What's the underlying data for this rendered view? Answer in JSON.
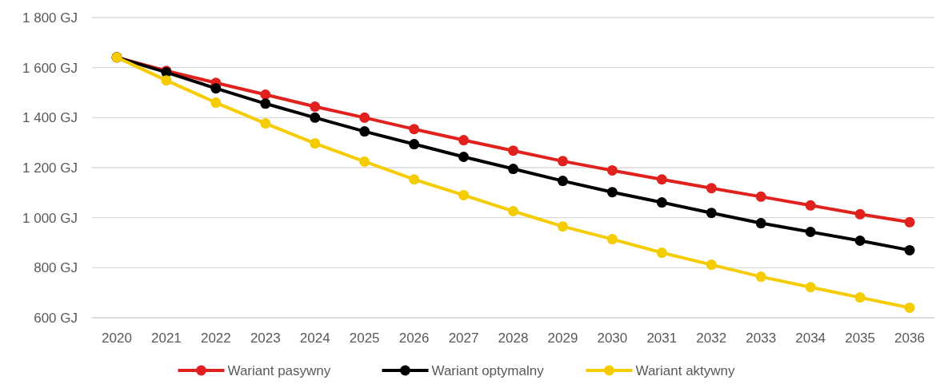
{
  "chart_data": {
    "type": "line",
    "categories": [
      "2020",
      "2021",
      "2022",
      "2023",
      "2024",
      "2025",
      "2026",
      "2027",
      "2028",
      "2029",
      "2030",
      "2031",
      "2032",
      "2033",
      "2034",
      "2035",
      "2036"
    ],
    "series": [
      {
        "name": "Wariant pasywny",
        "color": "#e0211d",
        "values": [
          1641,
          1587,
          1539,
          1492,
          1444,
          1400,
          1354,
          1310,
          1268,
          1226,
          1189,
          1153,
          1118,
          1084,
          1049,
          1014,
          982
        ]
      },
      {
        "name": "Wariant optymalny",
        "color": "#000000",
        "values": [
          1641,
          1581,
          1517,
          1456,
          1400,
          1345,
          1294,
          1243,
          1195,
          1147,
          1102,
          1061,
          1019,
          978,
          943,
          908,
          870
        ]
      },
      {
        "name": "Wariant aktywny",
        "color": "#f5cc00",
        "values": [
          1641,
          1549,
          1460,
          1377,
          1297,
          1224,
          1153,
          1090,
          1026,
          965,
          914,
          860,
          812,
          764,
          722,
          681,
          640
        ]
      }
    ],
    "ylim": [
      600,
      1800
    ],
    "yticks": [
      {
        "value": 600,
        "label": "600 GJ"
      },
      {
        "value": 800,
        "label": "800 GJ"
      },
      {
        "value": 1000,
        "label": "1 000 GJ"
      },
      {
        "value": 1200,
        "label": "1 200 GJ"
      },
      {
        "value": 1400,
        "label": "1 400 GJ"
      },
      {
        "value": 1600,
        "label": "1 600 GJ"
      },
      {
        "value": 1800,
        "label": "1 800 GJ"
      }
    ],
    "grid": "y",
    "legend": "bottom",
    "marker": "circle",
    "line_style": "solid"
  }
}
